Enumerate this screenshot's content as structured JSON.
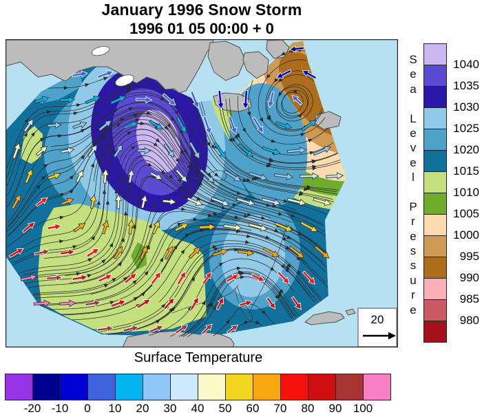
{
  "title": {
    "line1": "January 1996 Snow Storm",
    "line2": "1996 01 05 00:00 + 0"
  },
  "pressure_legend": {
    "words": [
      "Sea",
      "Level",
      "Pressure"
    ],
    "levels": [
      "1040",
      "1035",
      "1030",
      "1025",
      "1020",
      "1015",
      "1010",
      "1005",
      "1000",
      "995",
      "990",
      "985",
      "980"
    ],
    "colors": [
      "#C9B8F1",
      "#5B4BD3",
      "#2B17A9",
      "#90CAE8",
      "#4FA2C9",
      "#11719C",
      "#C4DF7D",
      "#6FAD2D",
      "#FBDCB1",
      "#CD9A55",
      "#AC6E1C",
      "#FAAFB9",
      "#CB5A64",
      "#A31218"
    ]
  },
  "temperature_legend": {
    "title": "Surface Temperature",
    "ticks": [
      "-20",
      "-10",
      "0",
      "10",
      "20",
      "30",
      "40",
      "50",
      "60",
      "70",
      "80",
      "90",
      "100"
    ],
    "colors": [
      "#9933E8",
      "#00008F",
      "#0000D6",
      "#3E63DC",
      "#00B4F0",
      "#8FC8F8",
      "#CDE9FB",
      "#FBFBC9",
      "#F3D41F",
      "#F7A70F",
      "#F5110E",
      "#CE0F0F",
      "#A63434",
      "#FA80C5"
    ]
  },
  "reference_vector": {
    "value": "20"
  },
  "map_palette": {
    "ocean": "#B5E1F2",
    "land": "#BCBCBC",
    "land_outline": "#4F4F4F",
    "lake": "#FFFFFF",
    "streamline": "#2B2B2B",
    "frame": "#222222"
  },
  "chart_data": {
    "type": "heatmap",
    "title": "January 1996 Snow Storm",
    "subtitle": "1996 01 05 00:00 + 0",
    "map_region": "North America",
    "fill_variable": "Sea Level Pressure (hPa)",
    "fill_levels_hPa": [
      1040,
      1035,
      1030,
      1025,
      1020,
      1015,
      1010,
      1005,
      1000,
      995,
      990,
      985,
      980
    ],
    "fill_colors_top_to_bottom": [
      "#C9B8F1",
      "#5B4BD3",
      "#2B17A9",
      "#90CAE8",
      "#4FA2C9",
      "#11719C",
      "#C4DF7D",
      "#6FAD2D",
      "#FBDCB1",
      "#CD9A55",
      "#AC6E1C",
      "#FAAFB9",
      "#CB5A64",
      "#A31218"
    ],
    "overlay": "black streamlines and wind vectors colored by surface temperature",
    "vector_color_variable": "Surface Temperature",
    "temperature_ticks": [
      -20,
      -10,
      0,
      10,
      20,
      30,
      40,
      50,
      60,
      70,
      80,
      90,
      100
    ],
    "temperature_colors": [
      "#9933E8",
      "#00008F",
      "#0000D6",
      "#3E63DC",
      "#00B4F0",
      "#8FC8F8",
      "#CDE9FB",
      "#FBFBC9",
      "#F3D41F",
      "#F7A70F",
      "#F5110E",
      "#CE0F0F",
      "#A63434",
      "#FA80C5"
    ],
    "reference_vector": 20,
    "pressure_features": [
      {
        "feature": "high",
        "area": "northwest Canada",
        "value": "≥ 1040 hPa (lavender core)"
      },
      {
        "feature": "low",
        "area": "central-eastern Canada cyclone",
        "value": "~1020–1025 hPa"
      },
      {
        "feature": "low",
        "area": "far northeast (Labrador / Baffin)",
        "value": "≤ 990–995 hPa (brown core)"
      },
      {
        "feature": "ridge",
        "area": "southeastern United States",
        "value": "~1025–1030 hPa"
      },
      {
        "feature": "warm sector",
        "area": "southern / south-central US",
        "value": "1010–1015 hPa"
      }
    ]
  }
}
